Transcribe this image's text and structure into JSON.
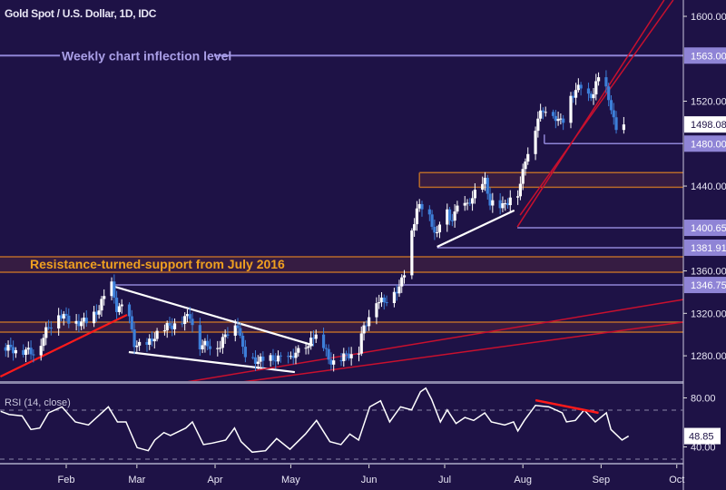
{
  "chart_data": {
    "type": "candlestick",
    "title": "Gold Spot / U.S. Dollar, 1D, IDC",
    "price_axis": {
      "ylim": [
        1240,
        1615
      ],
      "ticks": [
        "1600.00",
        "1520.00",
        "1440.00",
        "1360.00",
        "1320.00",
        "1280.00"
      ]
    },
    "x_axis": {
      "unit": "day_of_year_2019",
      "xlim": [
        5,
        278
      ],
      "months": [
        {
          "label": "Feb",
          "day": 31
        },
        {
          "label": "Mar",
          "day": 59
        },
        {
          "label": "Apr",
          "day": 90
        },
        {
          "label": "May",
          "day": 120
        },
        {
          "label": "Jun",
          "day": 151
        },
        {
          "label": "Jul",
          "day": 181
        },
        {
          "label": "Aug",
          "day": 212
        },
        {
          "label": "Sep",
          "day": 243
        },
        {
          "label": "Oct",
          "day": 273
        }
      ]
    },
    "close_keyframes": [
      [
        5,
        1288
      ],
      [
        19,
        1283
      ],
      [
        23,
        1303
      ],
      [
        28,
        1320
      ],
      [
        33,
        1312
      ],
      [
        40,
        1312
      ],
      [
        44,
        1325
      ],
      [
        47,
        1340
      ],
      [
        49,
        1346
      ],
      [
        51,
        1325
      ],
      [
        55,
        1325
      ],
      [
        58,
        1292
      ],
      [
        62,
        1286
      ],
      [
        66,
        1299
      ],
      [
        71,
        1307
      ],
      [
        76,
        1312
      ],
      [
        80,
        1318
      ],
      [
        84,
        1290
      ],
      [
        92,
        1290
      ],
      [
        96,
        1307
      ],
      [
        99,
        1310
      ],
      [
        101,
        1285
      ],
      [
        103,
        1277
      ],
      [
        109,
        1275
      ],
      [
        114,
        1278
      ],
      [
        119,
        1276
      ],
      [
        121,
        1282
      ],
      [
        127,
        1286
      ],
      [
        128,
        1300
      ],
      [
        132,
        1293
      ],
      [
        135,
        1277
      ],
      [
        137,
        1274
      ],
      [
        141,
        1279
      ],
      [
        147,
        1286
      ],
      [
        148,
        1300
      ],
      [
        150,
        1310
      ],
      [
        152,
        1329
      ],
      [
        154,
        1333
      ],
      [
        157,
        1330
      ],
      [
        160,
        1341
      ],
      [
        163,
        1343
      ],
      [
        165,
        1359
      ],
      [
        168,
        1397
      ],
      [
        170,
        1419
      ],
      [
        172,
        1419
      ],
      [
        175,
        1410
      ],
      [
        178,
        1393
      ],
      [
        181,
        1420
      ],
      [
        183,
        1408
      ],
      [
        186,
        1418
      ],
      [
        190,
        1422
      ],
      [
        191,
        1427
      ],
      [
        197,
        1444
      ],
      [
        199,
        1425
      ],
      [
        204,
        1420
      ],
      [
        208,
        1432
      ],
      [
        209,
        1428
      ],
      [
        211,
        1440
      ],
      [
        213,
        1466
      ],
      [
        215,
        1479
      ],
      [
        217,
        1496
      ],
      [
        218,
        1504
      ],
      [
        222,
        1517
      ],
      [
        226,
        1500
      ],
      [
        229,
        1505
      ],
      [
        231,
        1525
      ],
      [
        235,
        1534
      ],
      [
        237,
        1523
      ],
      [
        240,
        1528
      ],
      [
        243,
        1549
      ],
      [
        245,
        1530
      ],
      [
        247,
        1515
      ],
      [
        249,
        1490
      ],
      [
        252,
        1498.08
      ]
    ],
    "last_price": "1498.08",
    "levels": [
      {
        "price": 1563,
        "label": "1563.00",
        "from_day": 5,
        "text": "Weekly chart inflection level"
      },
      {
        "price": 1480,
        "label": "1480.00",
        "from_day": 220.5
      },
      {
        "price": 1400.65,
        "label": "1400.65",
        "from_day": 209.8
      },
      {
        "price": 1381.91,
        "label": "1381.91",
        "from_day": 178
      },
      {
        "price": 1346.75,
        "label": "1346.75",
        "from_day": 49
      }
    ],
    "zones": [
      {
        "low": 1438.9,
        "high": 1452.6,
        "from_day": 171
      },
      {
        "low": 1358.8,
        "high": 1373.3,
        "from_day": 0,
        "text": "Resistance-turned-support from July 2016"
      },
      {
        "low": 1302.3,
        "high": 1311.7,
        "from_day": 0
      }
    ],
    "trendlines": [
      {
        "color": "#ffffff",
        "p1": [
          49,
          1346
        ],
        "p2": [
          128.8,
          1290
        ]
      },
      {
        "color": "#ffffff",
        "p1": [
          55.8,
          1283.5
        ],
        "p2": [
          121.6,
          1264.6
        ]
      },
      {
        "color": "#ffffff",
        "p1": [
          178,
          1382.7
        ],
        "p2": [
          208.6,
          1417
        ]
      },
      {
        "color": "#ff1a1a",
        "p1": [
          4.9,
          1260.4
        ],
        "p2": [
          55.1,
          1318.6
        ]
      },
      {
        "color": "#c8102e",
        "p1": [
          209.8,
          1401.5
        ],
        "p2": [
          268,
          1615.4
        ]
      },
      {
        "color": "#c8102e",
        "p1": [
          210.9,
          1412.6
        ],
        "p2": [
          271.6,
          1615.4
        ]
      },
      {
        "color": "#c8102e",
        "p1": [
          76.4,
          1254.4
        ],
        "p2": [
          275.5,
          1333
        ]
      },
      {
        "color": "#c8102e",
        "p1": [
          98,
          1254.4
        ],
        "p2": [
          275.5,
          1311.7
        ]
      }
    ],
    "rsi": {
      "label": "RSI (14, close)",
      "ylim": [
        25,
        92
      ],
      "ticks": [
        "80.00",
        "40.00"
      ],
      "bands": [
        70,
        30
      ],
      "last": "48.85",
      "points": [
        [
          5,
          69
        ],
        [
          8.3,
          66.5
        ],
        [
          13.5,
          65.3
        ],
        [
          17,
          54.2
        ],
        [
          20.5,
          55.4
        ],
        [
          24,
          67.8
        ],
        [
          29.3,
          72.7
        ],
        [
          34.6,
          60.4
        ],
        [
          39.8,
          57.9
        ],
        [
          47.7,
          72.7
        ],
        [
          51.3,
          60.4
        ],
        [
          54.7,
          60.4
        ],
        [
          59.1,
          39.4
        ],
        [
          63.5,
          36.9
        ],
        [
          66.1,
          45.6
        ],
        [
          69.7,
          51.7
        ],
        [
          72.3,
          49.3
        ],
        [
          78.4,
          55.4
        ],
        [
          81,
          60.4
        ],
        [
          85.4,
          41.9
        ],
        [
          88.9,
          43.1
        ],
        [
          94.2,
          45.6
        ],
        [
          97.7,
          55.4
        ],
        [
          100.3,
          44.3
        ],
        [
          104.7,
          35.7
        ],
        [
          110,
          36.9
        ],
        [
          114.4,
          46.8
        ],
        [
          119.7,
          38.1
        ],
        [
          125.8,
          50.5
        ],
        [
          130.2,
          61.6
        ],
        [
          135.5,
          44.3
        ],
        [
          139.9,
          41.9
        ],
        [
          143.4,
          50.5
        ],
        [
          146.9,
          45.6
        ],
        [
          151.3,
          72.7
        ],
        [
          155.6,
          77.6
        ],
        [
          159.2,
          60.4
        ],
        [
          163.5,
          72.7
        ],
        [
          167.9,
          70.2
        ],
        [
          171.4,
          85
        ],
        [
          173.5,
          88
        ],
        [
          175.8,
          78.9
        ],
        [
          179.3,
          60.4
        ],
        [
          182,
          70.2
        ],
        [
          185.5,
          59.1
        ],
        [
          189,
          64
        ],
        [
          192.5,
          61.6
        ],
        [
          196.9,
          67.8
        ],
        [
          199.5,
          60.4
        ],
        [
          204.8,
          57.9
        ],
        [
          208.3,
          60.4
        ],
        [
          210,
          53
        ],
        [
          212.6,
          61.6
        ],
        [
          217,
          73.9
        ],
        [
          222.3,
          72.7
        ],
        [
          227.6,
          67.8
        ],
        [
          229.3,
          60.4
        ],
        [
          232.8,
          61.6
        ],
        [
          236.3,
          70.2
        ],
        [
          240.7,
          60.4
        ],
        [
          245.1,
          67.8
        ],
        [
          246.9,
          54.2
        ],
        [
          251.3,
          45.6
        ],
        [
          253.9,
          48.85
        ]
      ],
      "divergence_line": {
        "p1": [
          217,
          78.1
        ],
        "p2": [
          242,
          67.8
        ],
        "color": "#ff1a1a"
      }
    },
    "colors": {
      "background": "#1e1246",
      "up": "#ffffff",
      "down": "#3d7fd9",
      "level": "#8f84d6",
      "zone": "#b86a2a",
      "zone_text": "#f0a020",
      "level_text": "#a99ee6"
    }
  }
}
